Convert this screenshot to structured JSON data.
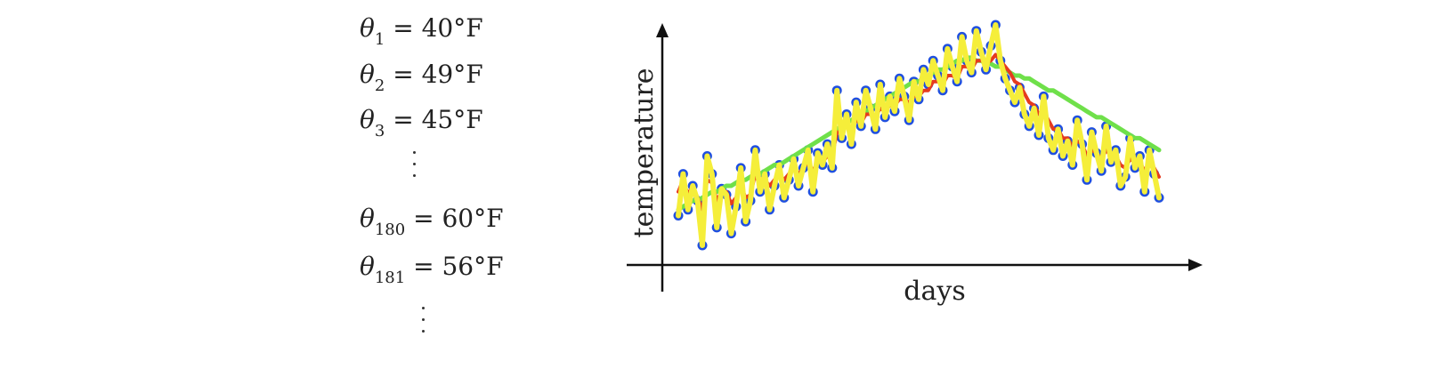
{
  "equations": [
    {
      "var": "θ",
      "sub": "1",
      "rhs": "= 40°F"
    },
    {
      "var": "θ",
      "sub": "2",
      "rhs": "= 49°F"
    },
    {
      "var": "θ",
      "sub": "3",
      "rhs": "= 45°F"
    },
    {
      "var": "θ",
      "sub": "180",
      "rhs": "= 60°F"
    },
    {
      "var": "θ",
      "sub": "181",
      "rhs": "= 56°F"
    }
  ],
  "chart_data": {
    "type": "scatter",
    "xlabel": "days",
    "ylabel": "temperature",
    "grid": false,
    "colors": {
      "points": "#1f4fe0",
      "yellow_line": "#f5ee3a",
      "red_line": "#e53b1e",
      "green_line": "#6fe04a",
      "axis": "#111111"
    },
    "x": [
      0,
      2,
      4,
      6,
      8,
      10,
      12,
      14,
      16,
      18,
      20,
      22,
      24,
      26,
      28,
      30,
      32,
      34,
      36,
      38,
      40,
      42,
      44,
      46,
      48,
      50,
      52,
      54,
      56,
      58,
      60,
      62,
      64,
      66,
      68,
      70,
      72,
      74,
      76,
      78,
      80,
      82,
      84,
      86,
      88,
      90,
      92,
      94,
      96,
      98,
      100,
      102,
      104,
      106,
      108,
      110,
      112,
      114,
      116,
      118,
      120,
      122,
      124,
      126,
      128,
      130,
      132,
      134,
      136,
      138,
      140,
      142,
      144,
      146,
      148,
      150,
      152,
      154,
      156,
      158,
      160,
      162,
      164,
      166,
      168,
      170,
      172,
      174,
      176,
      178,
      180,
      182,
      184,
      186,
      188,
      190,
      192,
      194,
      196,
      198,
      200
    ],
    "series": [
      {
        "values": [
          28,
          42,
          30,
          38,
          33,
          18,
          48,
          42,
          24,
          37,
          35,
          22,
          31,
          44,
          26,
          33,
          50,
          36,
          42,
          30,
          38,
          45,
          34,
          40,
          47,
          38,
          44,
          50,
          36,
          49,
          45,
          52,
          44,
          70,
          54,
          62,
          52,
          66,
          58,
          70,
          64,
          57,
          72,
          61,
          68,
          63,
          74,
          68,
          60,
          73,
          67,
          77,
          72,
          80,
          75,
          70,
          84,
          78,
          73,
          88,
          80,
          76,
          90,
          83,
          77,
          85,
          92,
          80,
          74,
          70,
          66,
          71,
          62,
          58,
          64,
          55,
          68,
          54,
          50,
          57,
          48,
          53,
          45,
          60,
          52,
          40,
          56,
          49,
          43,
          58,
          46,
          50,
          38,
          41,
          54,
          44,
          48,
          36,
          50,
          42,
          34
        ]
      },
      {
        "values": [
          36,
          40,
          35,
          38,
          34,
          30,
          40,
          39,
          33,
          36,
          36,
          32,
          34,
          38,
          34,
          35,
          42,
          38,
          40,
          38,
          40,
          42,
          40,
          42,
          44,
          42,
          44,
          46,
          43,
          46,
          46,
          48,
          48,
          56,
          56,
          58,
          57,
          60,
          59,
          62,
          62,
          61,
          64,
          63,
          65,
          65,
          67,
          67,
          66,
          68,
          68,
          70,
          70,
          73,
          73,
          72,
          75,
          75,
          74,
          78,
          78,
          77,
          80,
          80,
          79,
          80,
          82,
          80,
          78,
          76,
          73,
          72,
          69,
          66,
          65,
          62,
          63,
          60,
          57,
          57,
          54,
          54,
          51,
          53,
          52,
          48,
          50,
          49,
          47,
          50,
          48,
          48,
          45,
          44,
          47,
          46,
          46,
          43,
          45,
          44,
          41
        ]
      },
      {
        "values": [
          30,
          31,
          32,
          33,
          33,
          34,
          35,
          36,
          36,
          37,
          38,
          38,
          39,
          40,
          40,
          41,
          42,
          42,
          43,
          44,
          45,
          45,
          46,
          47,
          48,
          49,
          50,
          51,
          52,
          53,
          54,
          55,
          56,
          57,
          58,
          59,
          60,
          61,
          62,
          63,
          64,
          65,
          66,
          67,
          68,
          69,
          70,
          71,
          72,
          73,
          73,
          74,
          75,
          76,
          77,
          77,
          78,
          79,
          80,
          80,
          81,
          81,
          80,
          80,
          79,
          79,
          78,
          78,
          77,
          76,
          75,
          75,
          74,
          74,
          73,
          72,
          71,
          70,
          70,
          69,
          68,
          67,
          66,
          65,
          64,
          63,
          62,
          61,
          61,
          60,
          59,
          58,
          57,
          56,
          55,
          54,
          54,
          53,
          52,
          51,
          50
        ]
      }
    ]
  }
}
